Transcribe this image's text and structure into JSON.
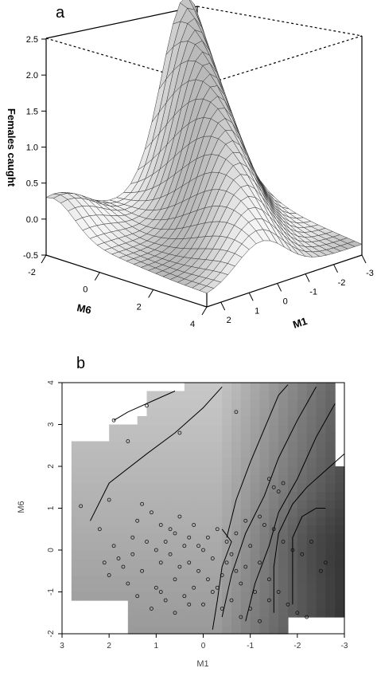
{
  "chart_data": [
    {
      "panel_label": "a",
      "type": "surface",
      "zlabel": "Females caught",
      "xlabel": "M6",
      "ylabel": "M1",
      "z_ticks": [
        "-0.5",
        "0.0",
        "0.5",
        "1.0",
        "1.5",
        "2.0",
        "2.5"
      ],
      "x_ticks": [
        "-2",
        "0",
        "2",
        "4"
      ],
      "y_ticks": [
        "-3",
        "-2",
        "-1",
        "0",
        "1",
        "2"
      ],
      "zlim": [
        -0.6,
        2.6
      ],
      "xlim": [
        -2,
        4
      ],
      "ylim": [
        -3,
        2.5
      ],
      "grid": true,
      "surface_description_points": [
        {
          "M6": 0.0,
          "M1": -2.6,
          "z": 2.5
        },
        {
          "M6": -1.5,
          "M1": -2.5,
          "z": 2.0
        },
        {
          "M6": 1.0,
          "M1": -2.0,
          "z": 1.3
        },
        {
          "M6": 3.0,
          "M1": 0.5,
          "z": 0.1
        },
        {
          "M6": -1.0,
          "M1": 1.8,
          "z": 0.3
        }
      ]
    },
    {
      "panel_label": "b",
      "type": "heatmap",
      "xlabel": "M1",
      "ylabel": "M6",
      "x_ticks": [
        "3",
        "2",
        "1",
        "0",
        "-1",
        "-2",
        "-3"
      ],
      "y_ticks": [
        "-2",
        "-1",
        "0",
        "1",
        "2",
        "3",
        "4"
      ],
      "xlim": [
        3,
        -3
      ],
      "ylim": [
        -2,
        4
      ],
      "x_reversed": true,
      "colors": {
        "low": "#ececec",
        "high": "#2c2c2c"
      },
      "points_M1_M6": [
        [
          2.6,
          1.05
        ],
        [
          1.9,
          3.1
        ],
        [
          1.2,
          3.45
        ],
        [
          0.5,
          2.8
        ],
        [
          -0.7,
          3.3
        ],
        [
          1.6,
          2.6
        ],
        [
          2.0,
          1.2
        ],
        [
          2.2,
          0.5
        ],
        [
          2.1,
          -0.3
        ],
        [
          2.0,
          -0.6
        ],
        [
          1.8,
          -0.2
        ],
        [
          1.9,
          0.1
        ],
        [
          1.5,
          0.3
        ],
        [
          1.4,
          0.7
        ],
        [
          1.3,
          1.1
        ],
        [
          1.1,
          0.9
        ],
        [
          0.9,
          0.6
        ],
        [
          0.8,
          0.2
        ],
        [
          0.7,
          -0.1
        ],
        [
          0.6,
          0.4
        ],
        [
          0.5,
          0.8
        ],
        [
          0.4,
          0.1
        ],
        [
          0.3,
          -0.3
        ],
        [
          0.2,
          0.6
        ],
        [
          0.1,
          -0.5
        ],
        [
          0.0,
          0.0
        ],
        [
          -0.1,
          0.3
        ],
        [
          -0.2,
          -0.2
        ],
        [
          -0.3,
          0.5
        ],
        [
          -0.4,
          -0.6
        ],
        [
          -0.5,
          0.2
        ],
        [
          -0.6,
          -0.1
        ],
        [
          -0.7,
          0.4
        ],
        [
          -0.8,
          -0.8
        ],
        [
          -0.9,
          -0.4
        ],
        [
          -1.0,
          0.1
        ],
        [
          -1.1,
          -1.0
        ],
        [
          -1.2,
          -0.3
        ],
        [
          -1.3,
          0.6
        ],
        [
          -1.4,
          -1.2
        ],
        [
          1.6,
          -0.8
        ],
        [
          1.3,
          -0.5
        ],
        [
          1.0,
          -0.9
        ],
        [
          0.8,
          -1.2
        ],
        [
          0.6,
          -0.7
        ],
        [
          0.4,
          -1.1
        ],
        [
          0.2,
          -0.9
        ],
        [
          0.0,
          -1.3
        ],
        [
          -0.2,
          -1.0
        ],
        [
          -0.4,
          -1.4
        ],
        [
          -0.6,
          -1.2
        ],
        [
          -0.8,
          -1.6
        ],
        [
          -1.0,
          -1.4
        ],
        [
          -1.2,
          -1.7
        ],
        [
          -1.4,
          -0.7
        ],
        [
          -1.6,
          -1.0
        ],
        [
          -1.8,
          -1.3
        ],
        [
          -2.0,
          -1.5
        ],
        [
          -2.2,
          -1.6
        ],
        [
          -2.5,
          -0.5
        ],
        [
          -2.6,
          -0.3
        ],
        [
          -2.3,
          0.2
        ],
        [
          -2.1,
          -0.1
        ],
        [
          -1.9,
          0.0
        ],
        [
          -1.7,
          1.6
        ],
        [
          -1.5,
          1.5
        ],
        [
          -1.4,
          1.7
        ],
        [
          -1.6,
          1.4
        ],
        [
          -1.2,
          0.8
        ],
        [
          -1.5,
          0.5
        ],
        [
          -1.7,
          0.2
        ],
        [
          1.7,
          -0.4
        ],
        [
          1.5,
          -0.1
        ],
        [
          1.2,
          0.2
        ],
        [
          1.0,
          0.0
        ],
        [
          0.9,
          -0.3
        ],
        [
          0.7,
          0.5
        ],
        [
          0.5,
          -0.4
        ],
        [
          0.3,
          0.3
        ],
        [
          0.1,
          0.1
        ],
        [
          -0.1,
          -0.7
        ],
        [
          -0.3,
          -0.9
        ],
        [
          -0.5,
          -0.3
        ],
        [
          -0.7,
          -0.5
        ],
        [
          -0.9,
          0.7
        ],
        [
          1.4,
          -1.1
        ],
        [
          1.1,
          -1.4
        ],
        [
          0.9,
          -1.0
        ],
        [
          0.6,
          -1.5
        ],
        [
          0.3,
          -1.3
        ]
      ]
    }
  ]
}
